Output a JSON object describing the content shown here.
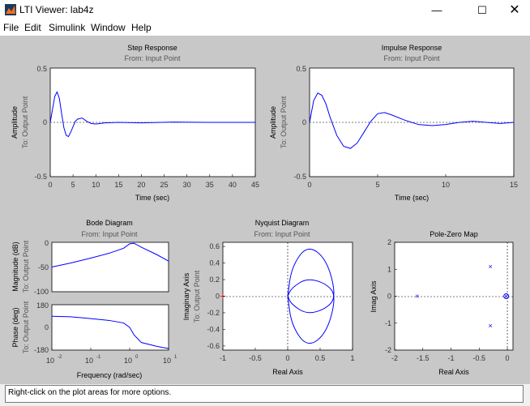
{
  "window": {
    "title": "LTI Viewer: lab4z",
    "minimize_icon": "minimize-icon",
    "maximize_icon": "maximize-icon",
    "close_icon": "close-icon"
  },
  "menu": [
    "File",
    "Edit",
    "Simulink",
    "Window",
    "Help"
  ],
  "status_text": "Right-click on the plot areas for more options.",
  "colors": {
    "trace": "#0000ff",
    "figure_bg": "#c8c8c8",
    "axes_bg": "#ffffff",
    "marker_red": "#ff0000"
  },
  "plots": {
    "step": {
      "title": "Step Response",
      "subtitle": "From: Input Point",
      "ylabel": "Amplitude",
      "ylabel2": "To: Output Point",
      "xlabel": "Time (sec)",
      "yticks": [
        "0.5",
        "0",
        "-0.5"
      ],
      "xticks": [
        "0",
        "5",
        "10",
        "15",
        "20",
        "25",
        "30",
        "35",
        "40",
        "45"
      ]
    },
    "impulse": {
      "title": "Impulse Response",
      "subtitle": "From: Input Point",
      "ylabel": "Amplitude",
      "ylabel2": "To: Output Point",
      "xlabel": "Time (sec)",
      "yticks": [
        "0.5",
        "0",
        "-0.5"
      ],
      "xticks": [
        "0",
        "5",
        "10",
        "15"
      ]
    },
    "bode": {
      "title": "Bode Diagram",
      "subtitle": "From: Input Point",
      "mag_ylabel": "Magnitude (dB)",
      "mag_ylabel2": "To: Output Point",
      "phase_ylabel": "Phase (deg)",
      "phase_ylabel2": "To: Output Point",
      "xlabel": "Frequency (rad/sec)",
      "mag_yticks": [
        "0",
        "-50",
        "-100"
      ],
      "phase_yticks": [
        "180",
        "0",
        "-180"
      ],
      "xticks": [
        {
          "base": "10",
          "exp": "-2"
        },
        {
          "base": "10",
          "exp": "-1"
        },
        {
          "base": "10",
          "exp": "0"
        },
        {
          "base": "10",
          "exp": "1"
        }
      ]
    },
    "nyquist": {
      "title": "Nyquist Diagram",
      "subtitle": "From: Input Point",
      "ylabel": "Imaginary Axis",
      "ylabel2": "To: Output Point",
      "xlabel": "Real Axis",
      "yticks": [
        "0.6",
        "0.4",
        "0.2",
        "0",
        "-0.2",
        "-0.4",
        "-0.6"
      ],
      "xticks": [
        "-1",
        "-0.5",
        "0",
        "0.5",
        "1"
      ]
    },
    "pz": {
      "title": "Pole-Zero Map",
      "ylabel": "Imag Axis",
      "xlabel": "Real Axis",
      "yticks": [
        "2",
        "1",
        "0",
        "-1",
        "-2"
      ],
      "xticks": [
        "-2",
        "-1.5",
        "-1",
        "-0.5",
        "0"
      ]
    }
  },
  "chart_data": [
    {
      "type": "line",
      "title": "Step Response",
      "subtitle": "From: Input Point",
      "xlabel": "Time (sec)",
      "ylabel": "Amplitude",
      "xlim": [
        0,
        45
      ],
      "ylim": [
        -0.5,
        0.5
      ],
      "series": [
        {
          "x": [
            0,
            0.5,
            1,
            1.5,
            2,
            2.5,
            3,
            3.5,
            4,
            4.5,
            5,
            5.5,
            6,
            7,
            8,
            9,
            10,
            12,
            15,
            20,
            27,
            35,
            45
          ],
          "values": [
            0,
            0.12,
            0.24,
            0.28,
            0.22,
            0.08,
            -0.05,
            -0.12,
            -0.13,
            -0.09,
            -0.04,
            0.01,
            0.03,
            0.04,
            0.01,
            -0.01,
            -0.015,
            -0.005,
            0.0,
            -0.005,
            0.003,
            0.0,
            0.0
          ]
        }
      ]
    },
    {
      "type": "line",
      "title": "Impulse Response",
      "subtitle": "From: Input Point",
      "xlabel": "Time (sec)",
      "ylabel": "Amplitude",
      "xlim": [
        0,
        15
      ],
      "ylim": [
        -0.5,
        0.5
      ],
      "series": [
        {
          "x": [
            0,
            0.3,
            0.6,
            0.9,
            1.2,
            1.5,
            2,
            2.5,
            3,
            3.5,
            4,
            4.5,
            5,
            5.5,
            6,
            7,
            8,
            9,
            10,
            11,
            12,
            13,
            14,
            15
          ],
          "values": [
            0,
            0.2,
            0.27,
            0.25,
            0.17,
            0.05,
            -0.12,
            -0.22,
            -0.24,
            -0.19,
            -0.09,
            0.01,
            0.08,
            0.09,
            0.07,
            0.02,
            -0.02,
            -0.03,
            -0.02,
            0.0,
            0.01,
            0.0,
            -0.01,
            0.0
          ]
        }
      ]
    },
    {
      "type": "line",
      "title": "Bode Diagram — Magnitude (dB)",
      "xlabel": "Frequency (rad/sec)",
      "xscale": "log",
      "xlim": [
        0.01,
        10
      ],
      "ylim": [
        -100,
        0
      ],
      "series": [
        {
          "x": [
            0.01,
            0.03,
            0.1,
            0.3,
            0.7,
            1.0,
            1.3,
            2,
            5,
            10
          ],
          "values": [
            -50,
            -42,
            -32,
            -22,
            -12,
            -3,
            -2,
            -10,
            -25,
            -38
          ]
        }
      ]
    },
    {
      "type": "line",
      "title": "Bode Diagram — Phase (deg)",
      "xlabel": "Frequency (rad/sec)",
      "xscale": "log",
      "xlim": [
        0.01,
        10
      ],
      "ylim": [
        -180,
        180
      ],
      "series": [
        {
          "x": [
            0.01,
            0.03,
            0.1,
            0.3,
            0.7,
            1.0,
            1.3,
            2,
            5,
            10
          ],
          "values": [
            88,
            84,
            70,
            55,
            35,
            0,
            -60,
            -120,
            -150,
            -168
          ]
        }
      ]
    },
    {
      "type": "line",
      "title": "Nyquist Diagram",
      "subtitle": "From: Input Point",
      "xlabel": "Real Axis",
      "ylabel": "Imaginary Axis",
      "xlim": [
        -1,
        1
      ],
      "ylim": [
        -0.65,
        0.65
      ],
      "series": [
        {
          "name": "upper loop",
          "x": [
            0,
            0.06,
            0.3,
            0.6,
            0.75,
            0.6,
            0.3,
            0.06,
            0
          ],
          "values": [
            0,
            0.35,
            0.62,
            0.45,
            0,
            -0.15,
            -0.22,
            -0.1,
            0
          ]
        },
        {
          "name": "lower loop",
          "x": [
            0,
            0.06,
            0.3,
            0.6,
            0.75,
            0.6,
            0.3,
            0.06,
            0
          ],
          "values": [
            0,
            0.1,
            0.22,
            0.15,
            0,
            -0.45,
            -0.62,
            -0.35,
            0
          ]
        }
      ],
      "markers": [
        {
          "x": -1,
          "y": 0,
          "symbol": "+",
          "color": "#ff0000"
        }
      ]
    },
    {
      "type": "scatter",
      "title": "Pole-Zero Map",
      "xlabel": "Real Axis",
      "ylabel": "Imag Axis",
      "xlim": [
        -2,
        0.1
      ],
      "ylim": [
        -2,
        2
      ],
      "poles": [
        {
          "x": -1.6,
          "y": 0
        },
        {
          "x": -0.3,
          "y": 1.1
        },
        {
          "x": -0.3,
          "y": -1.1
        },
        {
          "x": -0.02,
          "y": 0
        }
      ],
      "zeros": [
        {
          "x": -0.02,
          "y": 0
        }
      ]
    }
  ]
}
